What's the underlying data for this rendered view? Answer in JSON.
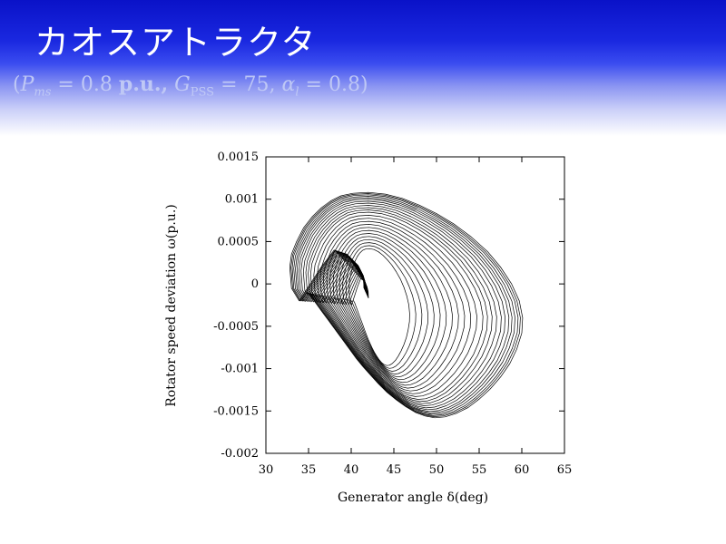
{
  "slide": {
    "title": "カオスアトラクタ",
    "subtitle": {
      "open": "(",
      "p_sym": "P",
      "p_sub": "ms",
      "p_val": " = 0.8 ",
      "p_unit": "p.u.,",
      "g_sym": " G",
      "g_sub": "PSS",
      "g_val": " = 75, ",
      "a_sym": "α",
      "a_sub": "l",
      "a_val": " = 0.8",
      "close": ")"
    }
  },
  "chart_data": {
    "type": "line",
    "xlabel": "Generator angle  δ(deg)",
    "ylabel": "Rotator speed deviation  ω(p.u.)",
    "xlim": [
      30,
      65
    ],
    "ylim": [
      -0.002,
      0.0015
    ],
    "x_ticks": [
      "30",
      "35",
      "40",
      "45",
      "50",
      "55",
      "60",
      "65"
    ],
    "y_ticks": [
      "0.0015",
      "0.001",
      "0.0005",
      "0",
      "-0.0005",
      "-0.001",
      "-0.0015",
      "-0.002"
    ],
    "grid": false,
    "legend": "none",
    "line_color": "#000000",
    "series": [
      {
        "x": [
          41.5,
          41.4,
          40.8,
          39.5,
          38.0,
          36.5,
          35.2,
          33.9,
          33.0,
          32.8,
          33.0,
          33.6,
          34.4,
          35.4,
          36.5,
          37.6,
          38.8,
          40.2,
          42.0,
          44.0,
          46.0,
          48.0,
          50.0,
          52.0,
          54.0,
          56.0,
          57.5,
          58.8,
          59.7,
          60.1,
          60.0,
          59.4,
          58.6,
          57.5,
          56.3,
          55.0,
          53.7,
          52.3,
          51.0,
          49.8,
          48.7,
          47.6,
          46.4,
          45.3,
          44.2,
          43.2,
          42.3,
          41.4,
          40.6,
          39.8,
          39.0,
          38.2,
          37.4,
          36.6,
          35.8,
          35.2,
          34.7
        ],
        "y": [
          -5e-05,
          0.0001,
          0.00022,
          0.00035,
          0.0004,
          0.0002,
          0.0,
          -0.0002,
          -5e-05,
          0.0002,
          0.00035,
          0.0005,
          0.00066,
          0.00079,
          0.0009,
          0.00098,
          0.00104,
          0.00107,
          0.00108,
          0.00106,
          0.00101,
          0.00093,
          0.00083,
          0.00071,
          0.00056,
          0.00038,
          0.0002,
          0.0,
          -0.0002,
          -0.0004,
          -0.00058,
          -0.00077,
          -0.00094,
          -0.0011,
          -0.00124,
          -0.00136,
          -0.00146,
          -0.00153,
          -0.00157,
          -0.00158,
          -0.00156,
          -0.00152,
          -0.00145,
          -0.00137,
          -0.00128,
          -0.00118,
          -0.00108,
          -0.00098,
          -0.00088,
          -0.00077,
          -0.00066,
          -0.00055,
          -0.00044,
          -0.00033,
          -0.00022,
          -0.00014,
          -0.0001
        ]
      }
    ]
  }
}
